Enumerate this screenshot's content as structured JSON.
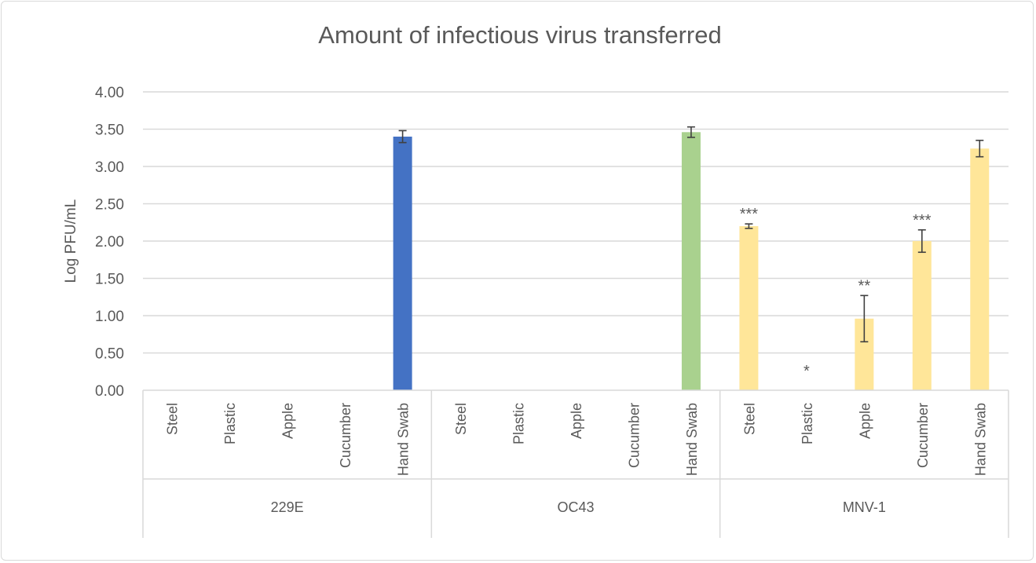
{
  "chart_data": {
    "type": "bar",
    "title": "Amount of infectious virus transferred",
    "ylabel": "Log PFU/mL",
    "xlabel": "",
    "ylim": [
      0,
      4
    ],
    "yticks": [
      "0.00",
      "0.50",
      "1.00",
      "1.50",
      "2.00",
      "2.50",
      "3.00",
      "3.50",
      "4.00"
    ],
    "grid": true,
    "groups": [
      {
        "name": "229E",
        "color": "#4472C4",
        "categories": [
          "Steel",
          "Plastic",
          "Apple",
          "Cucumber",
          "Hand Swab"
        ],
        "values": [
          0,
          0,
          0,
          0,
          3.4
        ],
        "errors": [
          0,
          0,
          0,
          0,
          0.08
        ],
        "significance": [
          "",
          "",
          "",
          "",
          ""
        ]
      },
      {
        "name": "OC43",
        "color": "#A9D18E",
        "categories": [
          "Steel",
          "Plastic",
          "Apple",
          "Cucumber",
          "Hand Swab"
        ],
        "values": [
          0,
          0,
          0,
          0,
          3.46
        ],
        "errors": [
          0,
          0,
          0,
          0,
          0.07
        ],
        "significance": [
          "",
          "",
          "",
          "",
          ""
        ]
      },
      {
        "name": "MNV-1",
        "color": "#FFE699",
        "categories": [
          "Steel",
          "Plastic",
          "Apple",
          "Cucumber",
          "Hand Swab"
        ],
        "values": [
          2.2,
          0,
          0.96,
          2.0,
          3.24
        ],
        "errors": [
          0.03,
          0,
          0.31,
          0.15,
          0.11
        ],
        "significance": [
          "***",
          "*",
          "**",
          "***",
          ""
        ]
      }
    ]
  }
}
